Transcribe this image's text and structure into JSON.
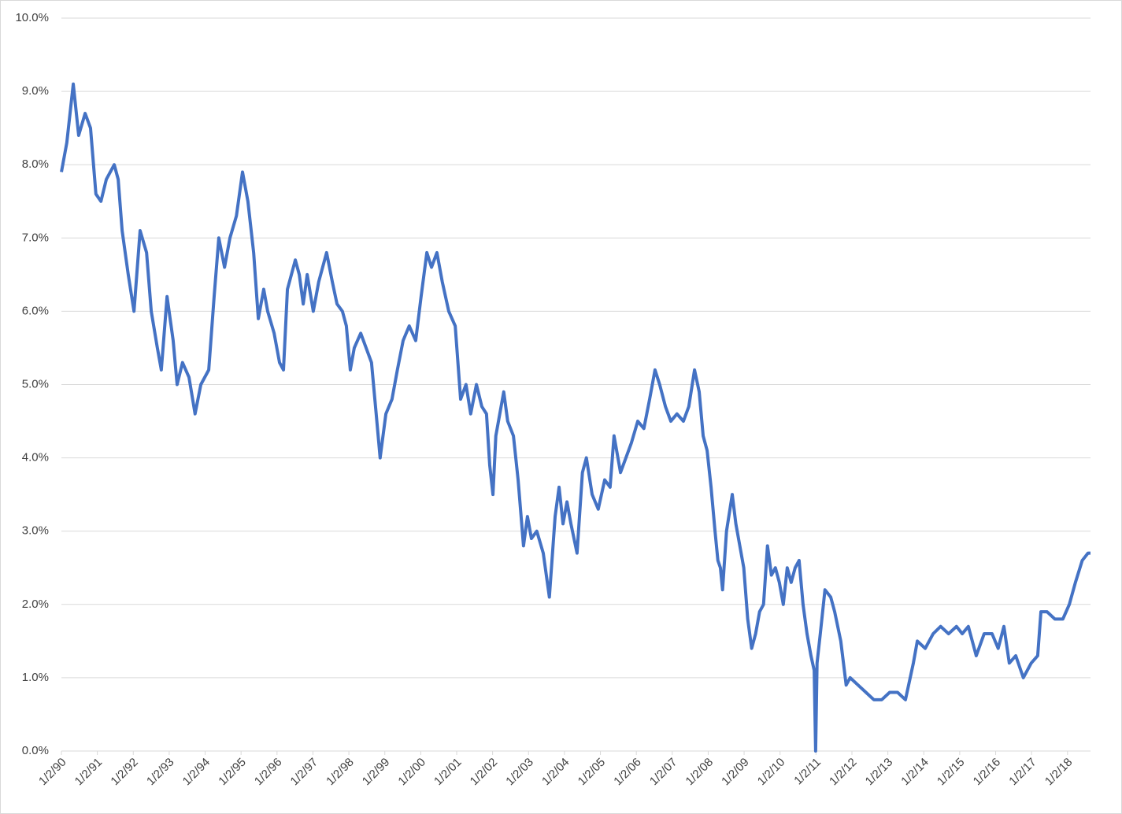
{
  "chart_data": {
    "type": "line",
    "x": [
      1990,
      1990.15,
      1990.33,
      1990.48,
      1990.66,
      1990.81,
      1990.96,
      1991.1,
      1991.25,
      1991.47,
      1991.58,
      1991.69,
      1991.86,
      1992.02,
      1992.19,
      1992.37,
      1992.5,
      1992.67,
      1992.78,
      1992.94,
      1993.11,
      1993.22,
      1993.37,
      1993.55,
      1993.72,
      1993.88,
      1994.1,
      1994.25,
      1994.38,
      1994.54,
      1994.69,
      1994.87,
      1995.04,
      1995.19,
      1995.35,
      1995.48,
      1995.63,
      1995.74,
      1995.92,
      1996.07,
      1996.18,
      1996.29,
      1996.51,
      1996.62,
      1996.73,
      1996.84,
      1997.01,
      1997.16,
      1997.38,
      1997.54,
      1997.67,
      1997.82,
      1997.93,
      1998.04,
      1998.15,
      1998.33,
      1998.48,
      1998.63,
      1998.76,
      1998.87,
      1999.03,
      1999.2,
      1999.35,
      1999.51,
      1999.68,
      1999.86,
      2000.01,
      2000.17,
      2000.3,
      2000.45,
      2000.6,
      2000.78,
      2000.96,
      2001.11,
      2001.26,
      2001.39,
      2001.55,
      2001.7,
      2001.83,
      2001.92,
      2002.01,
      2002.09,
      2002.2,
      2002.31,
      2002.42,
      2002.58,
      2002.71,
      2002.86,
      2002.97,
      2003.08,
      2003.23,
      2003.41,
      2003.58,
      2003.74,
      2003.85,
      2003.96,
      2004.07,
      2004.18,
      2004.35,
      2004.5,
      2004.61,
      2004.77,
      2004.94,
      2005.12,
      2005.27,
      2005.38,
      2005.56,
      2005.71,
      2005.86,
      2006.04,
      2006.21,
      2006.37,
      2006.52,
      2006.65,
      2006.81,
      2006.96,
      2007.13,
      2007.31,
      2007.46,
      2007.62,
      2007.75,
      2007.86,
      2007.97,
      2008.08,
      2008.19,
      2008.27,
      2008.34,
      2008.4,
      2008.51,
      2008.67,
      2008.77,
      2008.88,
      2008.99,
      2009.1,
      2009.21,
      2009.32,
      2009.43,
      2009.54,
      2009.65,
      2009.76,
      2009.87,
      2009.98,
      2010.09,
      2010.2,
      2010.31,
      2010.42,
      2010.53,
      2010.64,
      2010.75,
      2010.86,
      2010.95,
      2010.99,
      2011.03,
      2011.12,
      2011.25,
      2011.41,
      2011.52,
      2011.69,
      2011.84,
      2011.95,
      2012.17,
      2012.39,
      2012.61,
      2012.83,
      2013.05,
      2013.27,
      2013.49,
      2013.71,
      2013.82,
      2014.04,
      2014.26,
      2014.47,
      2014.69,
      2014.91,
      2015.07,
      2015.24,
      2015.46,
      2015.68,
      2015.9,
      2016.07,
      2016.23,
      2016.38,
      2016.56,
      2016.77,
      2016.99,
      2017.17,
      2017.26,
      2017.43,
      2017.65,
      2017.87,
      2018.05,
      2018.22,
      2018.41,
      2018.57,
      2018.64
    ],
    "series": [
      {
        "color": "#4472c4",
        "values": [
          7.9,
          8.3,
          9.1,
          8.4,
          8.7,
          8.5,
          7.6,
          7.5,
          7.8,
          8.0,
          7.8,
          7.1,
          6.5,
          6.0,
          7.1,
          6.8,
          6.0,
          5.5,
          5.2,
          6.2,
          5.6,
          5.0,
          5.3,
          5.1,
          4.6,
          5.0,
          5.2,
          6.2,
          7.0,
          6.6,
          7.0,
          7.3,
          7.9,
          7.5,
          6.8,
          5.9,
          6.3,
          6.0,
          5.7,
          5.3,
          5.2,
          6.3,
          6.7,
          6.5,
          6.1,
          6.5,
          6.0,
          6.4,
          6.8,
          6.4,
          6.1,
          6.0,
          5.8,
          5.2,
          5.5,
          5.7,
          5.5,
          5.3,
          4.6,
          4.0,
          4.6,
          4.8,
          5.2,
          5.6,
          5.8,
          5.6,
          6.2,
          6.8,
          6.6,
          6.8,
          6.4,
          6.0,
          5.8,
          4.8,
          5.0,
          4.6,
          5.0,
          4.7,
          4.6,
          3.9,
          3.5,
          4.3,
          4.6,
          4.9,
          4.5,
          4.3,
          3.7,
          2.8,
          3.2,
          2.9,
          3.0,
          2.7,
          2.1,
          3.2,
          3.6,
          3.1,
          3.4,
          3.1,
          2.7,
          3.8,
          4.0,
          3.5,
          3.3,
          3.7,
          3.6,
          4.3,
          3.8,
          4.0,
          4.2,
          4.5,
          4.4,
          4.8,
          5.2,
          5.0,
          4.7,
          4.5,
          4.6,
          4.5,
          4.7,
          5.2,
          4.9,
          4.3,
          4.1,
          3.6,
          3.0,
          2.6,
          2.5,
          2.2,
          3.0,
          3.5,
          3.1,
          2.8,
          2.5,
          1.8,
          1.4,
          1.6,
          1.9,
          2.0,
          2.8,
          2.4,
          2.5,
          2.3,
          2.0,
          2.5,
          2.3,
          2.5,
          2.6,
          2.0,
          1.6,
          1.3,
          1.1,
          0.0,
          1.2,
          1.6,
          2.2,
          2.1,
          1.9,
          1.5,
          0.9,
          1.0,
          0.9,
          0.8,
          0.7,
          0.7,
          0.8,
          0.8,
          0.7,
          1.2,
          1.5,
          1.4,
          1.6,
          1.7,
          1.6,
          1.7,
          1.6,
          1.7,
          1.3,
          1.6,
          1.6,
          1.4,
          1.7,
          1.2,
          1.3,
          1.0,
          1.2,
          1.3,
          1.9,
          1.9,
          1.8,
          1.8,
          2.0,
          2.3,
          2.6,
          2.7,
          2.7
        ]
      }
    ],
    "xlim": [
      1990,
      2018.64
    ],
    "xticks": [
      {
        "value": 1990,
        "label": "1/2/90"
      },
      {
        "value": 1991,
        "label": "1/2/91"
      },
      {
        "value": 1992,
        "label": "1/2/92"
      },
      {
        "value": 1993,
        "label": "1/2/93"
      },
      {
        "value": 1994,
        "label": "1/2/94"
      },
      {
        "value": 1995,
        "label": "1/2/95"
      },
      {
        "value": 1996,
        "label": "1/2/96"
      },
      {
        "value": 1997,
        "label": "1/2/97"
      },
      {
        "value": 1998,
        "label": "1/2/98"
      },
      {
        "value": 1999,
        "label": "1/2/99"
      },
      {
        "value": 2000,
        "label": "1/2/00"
      },
      {
        "value": 2001,
        "label": "1/2/01"
      },
      {
        "value": 2002,
        "label": "1/2/02"
      },
      {
        "value": 2003,
        "label": "1/2/03"
      },
      {
        "value": 2004,
        "label": "1/2/04"
      },
      {
        "value": 2005,
        "label": "1/2/05"
      },
      {
        "value": 2006,
        "label": "1/2/06"
      },
      {
        "value": 2007,
        "label": "1/2/07"
      },
      {
        "value": 2008,
        "label": "1/2/08"
      },
      {
        "value": 2009,
        "label": "1/2/09"
      },
      {
        "value": 2010,
        "label": "1/2/10"
      },
      {
        "value": 2011,
        "label": "1/2/11"
      },
      {
        "value": 2012,
        "label": "1/2/12"
      },
      {
        "value": 2013,
        "label": "1/2/13"
      },
      {
        "value": 2014,
        "label": "1/2/14"
      },
      {
        "value": 2015,
        "label": "1/2/15"
      },
      {
        "value": 2016,
        "label": "1/2/16"
      },
      {
        "value": 2017,
        "label": "1/2/17"
      },
      {
        "value": 2018,
        "label": "1/2/18"
      }
    ],
    "ylim": [
      0,
      10
    ],
    "yticks": [
      {
        "value": 0,
        "label": "0.0%"
      },
      {
        "value": 1,
        "label": "1.0%"
      },
      {
        "value": 2,
        "label": "2.0%"
      },
      {
        "value": 3,
        "label": "3.0%"
      },
      {
        "value": 4,
        "label": "4.0%"
      },
      {
        "value": 5,
        "label": "5.0%"
      },
      {
        "value": 6,
        "label": "6.0%"
      },
      {
        "value": 7,
        "label": "7.0%"
      },
      {
        "value": 8,
        "label": "8.0%"
      },
      {
        "value": 9,
        "label": "9.0%"
      },
      {
        "value": 10,
        "label": "10.0%"
      }
    ],
    "grid": true
  }
}
